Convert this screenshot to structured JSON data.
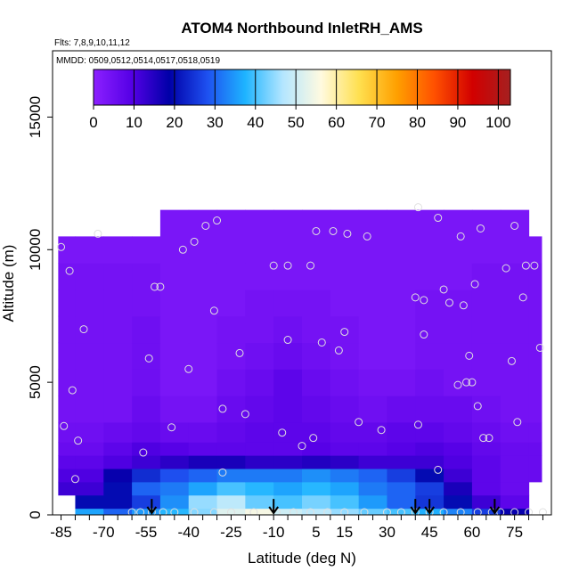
{
  "chart_data": {
    "type": "heatmap",
    "title": "ATOM4 Northbound InletRH_AMS",
    "annotations": [
      "Flts: 7,8,9,10,11,12",
      "MMDD: 0509,0512,0514,0517,0518,0519"
    ],
    "xlabel": "Latitude (deg N)",
    "ylabel": "Altitude (m)",
    "xlim": [
      -88,
      88
    ],
    "ylim": [
      0,
      17500
    ],
    "x_ticks": [
      -85,
      -70,
      -55,
      -40,
      -25,
      -10,
      5,
      15,
      30,
      45,
      60,
      75
    ],
    "x_minor_step": 5,
    "y_ticks": [
      0,
      5000,
      10000,
      15000
    ],
    "colorbar": {
      "label_ticks": [
        0,
        10,
        20,
        30,
        40,
        50,
        60,
        70,
        80,
        90,
        100
      ],
      "range": [
        0,
        103
      ],
      "placement": "top",
      "colors": [
        "#8c20ff",
        "#5500e6",
        "#0000a8",
        "#1e50f0",
        "#1eb4ff",
        "#b4e6ff",
        "#fffae0",
        "#ffe050",
        "#ffa000",
        "#ff5000",
        "#d20000",
        "#a52020"
      ]
    },
    "altitude_profile_z": [
      0,
      500,
      1000,
      1500,
      2000,
      2500,
      3000,
      4000,
      5000,
      6000,
      7000,
      8000,
      9000,
      10000,
      11000,
      12000
    ],
    "latitude_profile_x": [
      -85,
      -75,
      -65,
      -55,
      -45,
      -35,
      -25,
      -15,
      -5,
      5,
      15,
      25,
      35,
      45,
      55,
      65,
      75,
      85
    ],
    "rh_percent_grid": [
      [
        null,
        36,
        30,
        35,
        38,
        44,
        52,
        55,
        50,
        48,
        45,
        42,
        40,
        37,
        33,
        26,
        18,
        null
      ],
      [
        null,
        20,
        20,
        26,
        34,
        45,
        48,
        42,
        40,
        43,
        40,
        35,
        30,
        25,
        20,
        12,
        8,
        null
      ],
      [
        12,
        12,
        20,
        30,
        32,
        36,
        40,
        38,
        36,
        38,
        36,
        32,
        30,
        26,
        16,
        8,
        6,
        null
      ],
      [
        10,
        10,
        18,
        24,
        28,
        30,
        32,
        32,
        32,
        34,
        32,
        30,
        26,
        20,
        12,
        8,
        6,
        6
      ],
      [
        8,
        8,
        10,
        12,
        14,
        16,
        16,
        14,
        14,
        15,
        14,
        12,
        12,
        12,
        10,
        8,
        6,
        6
      ],
      [
        6,
        6,
        8,
        10,
        9,
        8,
        8,
        8,
        8,
        9,
        8,
        8,
        9,
        10,
        9,
        7,
        6,
        6
      ],
      [
        5,
        5,
        6,
        7,
        6,
        6,
        7,
        8,
        8,
        8,
        7,
        7,
        8,
        8,
        7,
        6,
        5,
        5
      ],
      [
        4,
        4,
        4,
        6,
        4,
        4,
        6,
        7,
        8,
        7,
        6,
        5,
        6,
        6,
        6,
        5,
        4,
        4
      ],
      [
        4,
        4,
        4,
        5,
        3,
        3,
        5,
        6,
        8,
        6,
        5,
        4,
        4,
        5,
        4,
        4,
        4,
        4
      ],
      [
        4,
        4,
        4,
        5,
        3,
        3,
        4,
        5,
        6,
        5,
        4,
        3,
        3,
        4,
        4,
        4,
        4,
        4
      ],
      [
        4,
        4,
        4,
        5,
        3,
        3,
        4,
        4,
        5,
        4,
        4,
        3,
        3,
        4,
        4,
        4,
        4,
        4
      ],
      [
        4,
        4,
        4,
        4,
        3,
        3,
        3,
        4,
        4,
        4,
        3,
        3,
        3,
        4,
        4,
        4,
        4,
        4
      ],
      [
        4,
        4,
        4,
        4,
        3,
        3,
        3,
        3,
        3,
        3,
        3,
        3,
        3,
        3,
        3,
        4,
        4,
        4
      ],
      [
        3,
        3,
        3,
        3,
        3,
        3,
        3,
        3,
        3,
        3,
        3,
        3,
        3,
        3,
        3,
        3,
        3,
        3
      ],
      [
        null,
        null,
        null,
        null,
        3,
        3,
        3,
        3,
        3,
        3,
        3,
        3,
        3,
        3,
        3,
        3,
        3,
        null
      ],
      [
        null,
        null,
        null,
        null,
        null,
        null,
        null,
        null,
        null,
        null,
        null,
        null,
        null,
        null,
        null,
        null,
        null,
        null
      ]
    ],
    "sample_points": [
      [
        -85,
        10100
      ],
      [
        -84,
        3350
      ],
      [
        -82,
        9200
      ],
      [
        -81,
        4700
      ],
      [
        -80,
        1350
      ],
      [
        -79,
        2800
      ],
      [
        -77,
        7000
      ],
      [
        -72,
        10600
      ],
      [
        -56,
        2350
      ],
      [
        -54,
        5900
      ],
      [
        -52,
        8600
      ],
      [
        -50,
        8600
      ],
      [
        -46,
        3300
      ],
      [
        -42,
        10000
      ],
      [
        -40,
        5500
      ],
      [
        -38,
        10300
      ],
      [
        -34,
        10900
      ],
      [
        -31,
        7700
      ],
      [
        -30,
        11100
      ],
      [
        -28,
        4000
      ],
      [
        -28,
        1600
      ],
      [
        -22,
        6100
      ],
      [
        -20,
        3800
      ],
      [
        -10,
        9400
      ],
      [
        -7,
        3100
      ],
      [
        -5,
        6600
      ],
      [
        -5,
        9400
      ],
      [
        0,
        2600
      ],
      [
        3,
        9400
      ],
      [
        4,
        2900
      ],
      [
        5,
        10700
      ],
      [
        7,
        6500
      ],
      [
        11,
        10700
      ],
      [
        13,
        6200
      ],
      [
        15,
        6900
      ],
      [
        16,
        10600
      ],
      [
        20,
        3500
      ],
      [
        23,
        10500
      ],
      [
        28,
        3200
      ],
      [
        40,
        8200
      ],
      [
        41,
        3400
      ],
      [
        41,
        11600
      ],
      [
        43,
        6800
      ],
      [
        43,
        8100
      ],
      [
        48,
        11200
      ],
      [
        48,
        1700
      ],
      [
        50,
        8500
      ],
      [
        52,
        8000
      ],
      [
        55,
        4900
      ],
      [
        56,
        10500
      ],
      [
        57,
        7900
      ],
      [
        58,
        5000
      ],
      [
        59,
        6000
      ],
      [
        60,
        5000
      ],
      [
        61,
        8700
      ],
      [
        62,
        4100
      ],
      [
        63,
        10800
      ],
      [
        64,
        2900
      ],
      [
        66,
        2900
      ],
      [
        72,
        9300
      ],
      [
        74,
        5800
      ],
      [
        75,
        10900
      ],
      [
        76,
        3500
      ],
      [
        78,
        8200
      ],
      [
        79,
        9400
      ],
      [
        82,
        9400
      ],
      [
        84,
        6300
      ]
    ],
    "surface_points_x": [
      -60,
      -57,
      -53,
      -49,
      -45,
      -38,
      -31,
      -25,
      -17,
      -9,
      -3,
      3,
      9,
      15,
      22,
      30,
      35,
      40,
      45,
      50,
      56,
      62,
      67,
      70,
      75,
      80,
      85
    ],
    "arrow_latitudes": [
      -53,
      -10,
      40,
      45,
      68
    ],
    "grid": false
  }
}
